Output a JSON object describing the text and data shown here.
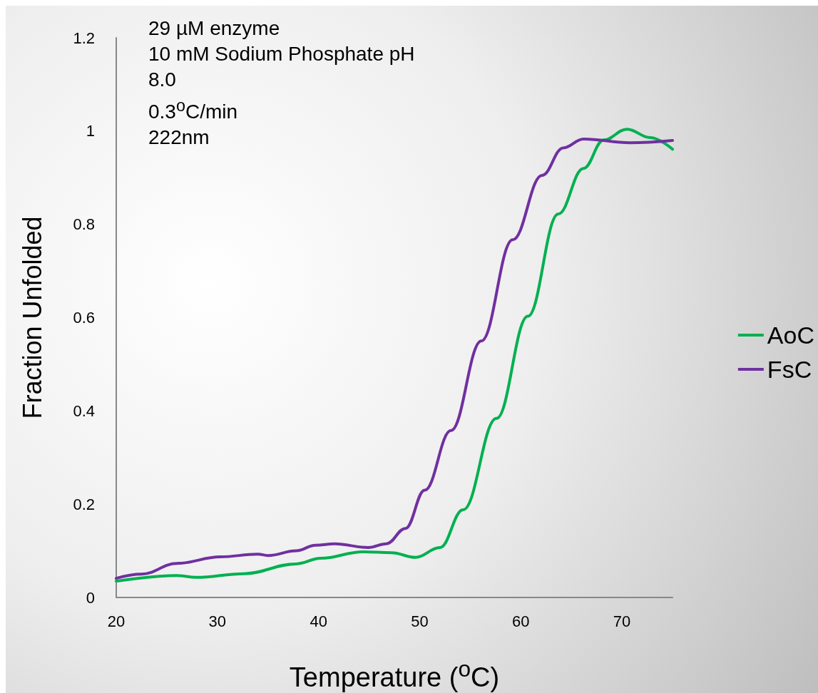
{
  "chart_data": {
    "type": "line",
    "xlabel": "Temperature ($^{o}$C)",
    "ylabel": "Fraction Unfolded",
    "annotations": [
      "29 µM enzyme",
      "10 mM Sodium Phosphate pH",
      "8.0",
      "0.3$^{o}$C/min",
      "222nm"
    ],
    "xlim": [
      20,
      75
    ],
    "xticks": [
      20,
      30,
      40,
      50,
      60,
      70
    ],
    "ylim": [
      0,
      1.2
    ],
    "yticks": [
      0,
      0.2,
      0.4,
      0.6,
      0.8,
      1,
      1.2
    ],
    "grid": false,
    "legend": "right",
    "marker": "none",
    "line_style": "solid",
    "series": [
      {
        "name": "AoC",
        "color": "#00b050",
        "x": [
          20,
          26,
          27.9,
          32.6,
          37.8,
          40.2,
          44.4,
          47.2,
          49.6,
          52,
          54.3,
          57.6,
          60.7,
          63.7,
          66.2,
          68.2,
          70.5,
          72.8,
          75
        ],
        "values": [
          0.035,
          0.047,
          0.043,
          0.051,
          0.072,
          0.084,
          0.098,
          0.096,
          0.086,
          0.107,
          0.188,
          0.384,
          0.603,
          0.822,
          0.92,
          0.981,
          1.004,
          0.986,
          0.961
        ]
      },
      {
        "name": "FsC",
        "color": "#7030a0",
        "x": [
          20,
          22.5,
          26,
          30.3,
          34,
          35,
          37.8,
          39.7,
          41.6,
          44.9,
          46.7,
          48.6,
          50.5,
          53.1,
          56.1,
          59.2,
          62.1,
          64.2,
          66.2,
          70.8,
          75
        ],
        "values": [
          0.041,
          0.05,
          0.073,
          0.087,
          0.093,
          0.09,
          0.1,
          0.112,
          0.115,
          0.107,
          0.115,
          0.148,
          0.23,
          0.358,
          0.55,
          0.767,
          0.905,
          0.964,
          0.983,
          0.975,
          0.98
        ]
      }
    ]
  }
}
